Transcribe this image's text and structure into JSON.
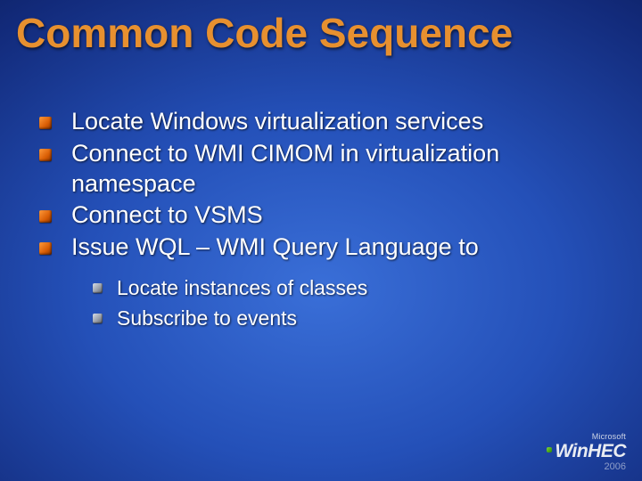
{
  "title": {
    "text": "Common Code Sequence",
    "color": "#e7902f",
    "fontsize": 46,
    "fontweight": 700
  },
  "bullets": {
    "level1_icon_color": "#e07a1a",
    "level2_icon_color": "#aeb3bc",
    "level1_fontsize": 27,
    "level2_fontsize": 23,
    "text_color": "#ffffff",
    "items": [
      {
        "text": "Locate Windows virtualization services"
      },
      {
        "text": "Connect to WMI CIMOM in virtualization namespace"
      },
      {
        "text": "Connect to VSMS"
      },
      {
        "text": "Issue WQL – WMI Query Language to",
        "children": [
          {
            "text": "Locate instances of classes"
          },
          {
            "text": "Subscribe to events"
          }
        ]
      }
    ]
  },
  "footer": {
    "vendor": "Microsoft",
    "brand": "WinHEC",
    "year": "2006",
    "text_color": "#e9ecf2"
  },
  "background": {
    "gradient_center": "#3a6fd8",
    "gradient_mid": "#122a7a",
    "gradient_edge": "#020818"
  }
}
